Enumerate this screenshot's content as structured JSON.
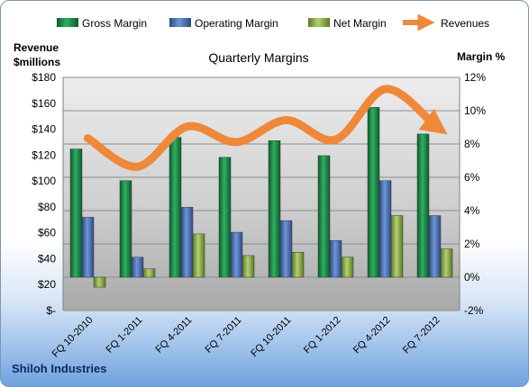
{
  "chart_data": {
    "type": "bar",
    "title": "Quarterly Margins",
    "left_axis_label": [
      "Revenue",
      "$millions"
    ],
    "right_axis_label": "Margin %",
    "categories": [
      "FQ 10-2010",
      "FQ 1-2011",
      "FQ 4-2011",
      "FQ 7-2011",
      "FQ 10-2011",
      "FQ 1-2012",
      "FQ 4-2012",
      "FQ 7-2012"
    ],
    "series": [
      {
        "name": "Gross Margin",
        "kind": "bar",
        "axis": "right",
        "color": "#1e8a4a",
        "values": [
          7.7,
          5.8,
          8.4,
          7.2,
          8.2,
          7.3,
          10.2,
          8.6
        ]
      },
      {
        "name": "Operating Margin",
        "kind": "bar",
        "axis": "right",
        "color": "#4a72b8",
        "values": [
          3.6,
          1.2,
          4.2,
          2.7,
          3.4,
          2.2,
          5.8,
          3.7
        ]
      },
      {
        "name": "Net Margin",
        "kind": "bar",
        "axis": "right",
        "color": "#8fb050",
        "values": [
          -0.6,
          0.5,
          2.6,
          1.3,
          1.5,
          1.2,
          3.7,
          1.7
        ]
      },
      {
        "name": "Revenues",
        "kind": "line",
        "axis": "left",
        "color": "#f0883a",
        "values": [
          133,
          111,
          142,
          130,
          147,
          132,
          171,
          143
        ]
      }
    ],
    "y_left": {
      "min": 0,
      "max": 180,
      "step": 20,
      "ticks": [
        "$-",
        "$20",
        "$40",
        "$60",
        "$80",
        "$100",
        "$120",
        "$140",
        "$160",
        "$180"
      ]
    },
    "y_right": {
      "min": -2,
      "max": 12,
      "step": 2,
      "ticks": [
        "-2%",
        "0%",
        "2%",
        "4%",
        "6%",
        "8%",
        "10%",
        "12%"
      ]
    },
    "grid": true,
    "legend_position": "top"
  },
  "footer": {
    "company": "Shiloh Industries"
  }
}
